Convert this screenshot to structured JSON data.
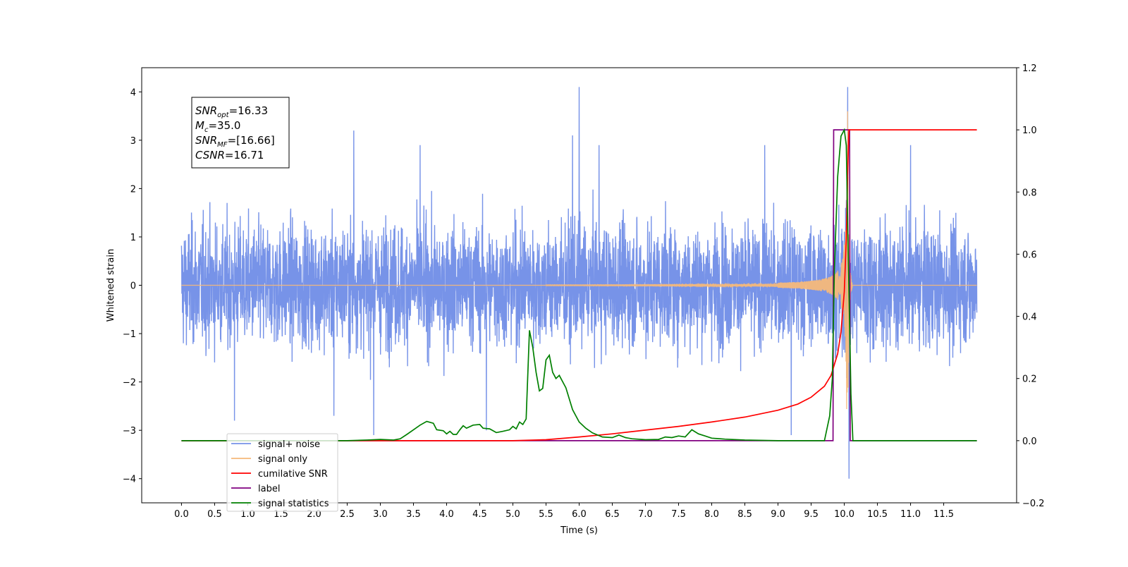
{
  "chart_data": {
    "type": "line",
    "xlabel": "Time (s)",
    "ylabel": "Whitened strain",
    "xlim": [
      -0.6,
      12.6
    ],
    "ylim_left": [
      -4.5,
      4.5
    ],
    "ylim_right": [
      -0.2,
      1.2
    ],
    "x_ticks": [
      "0.0",
      "0.5",
      "1.0",
      "1.5",
      "2.0",
      "2.5",
      "3.0",
      "3.5",
      "4.0",
      "4.5",
      "5.0",
      "5.5",
      "6.0",
      "6.5",
      "7.0",
      "7.5",
      "8.0",
      "8.5",
      "9.0",
      "9.5",
      "10.0",
      "10.5",
      "11.0",
      "11.5"
    ],
    "y_ticks_left": [
      4,
      3,
      2,
      1,
      0,
      -1,
      -2,
      -3,
      -4
    ],
    "y_tick_labels_left": [
      "4",
      "3",
      "2",
      "1",
      "0",
      "−1",
      "−2",
      "−3",
      "−4"
    ],
    "y_ticks_right": [
      1.2,
      1.0,
      0.8,
      0.6,
      0.4,
      0.2,
      0.0,
      -0.2
    ],
    "y_tick_labels_right": [
      "1.2",
      "1.0",
      "0.8",
      "0.6",
      "0.4",
      "0.2",
      "0.0",
      "−0.2"
    ],
    "annotation": {
      "lines": [
        {
          "base": "SNR",
          "sub": "opt",
          "value": "=16.33"
        },
        {
          "base": "M",
          "sub": "c",
          "value": "=35.0"
        },
        {
          "base": "SNR",
          "sub": "MF",
          "value": "=[16.66]"
        },
        {
          "base": "CSNR",
          "sub": "",
          "value": "=16.71"
        }
      ]
    },
    "legend": {
      "placement": "lower-left",
      "entries": [
        "signal+ noise",
        "signal only",
        "cumilative SNR",
        "label",
        "signal statistics"
      ]
    },
    "series": [
      {
        "name": "signal+ noise",
        "axis": "left",
        "color": "#7793e8",
        "kind": "noise",
        "x_range": [
          0.0,
          12.0
        ],
        "typical_amplitude": 1.6,
        "peaks": [
          {
            "x": 6.0,
            "y": 4.1
          },
          {
            "x": 10.05,
            "y": 4.1
          },
          {
            "x": 10.07,
            "y": -4.0
          },
          {
            "x": 0.8,
            "y": -2.8
          },
          {
            "x": 2.3,
            "y": -2.7
          },
          {
            "x": 2.9,
            "y": -3.1
          },
          {
            "x": 2.6,
            "y": 3.2
          },
          {
            "x": 3.6,
            "y": 2.9
          },
          {
            "x": 5.9,
            "y": 3.1
          },
          {
            "x": 6.3,
            "y": 2.9
          },
          {
            "x": 8.8,
            "y": 2.9
          },
          {
            "x": 11.0,
            "y": 2.9
          },
          {
            "x": 4.6,
            "y": -3.0
          },
          {
            "x": 9.2,
            "y": -3.1
          }
        ]
      },
      {
        "name": "signal only",
        "axis": "left",
        "color": "#f5b87a",
        "kind": "chirp",
        "merger_time": 10.05,
        "max_amplitude": 3.6,
        "ringdown_end": 10.12
      },
      {
        "name": "cumilative SNR",
        "axis": "right",
        "color": "#ff0000",
        "points": [
          [
            0.0,
            0.0
          ],
          [
            5.0,
            0.0
          ],
          [
            5.5,
            0.003
          ],
          [
            6.0,
            0.012
          ],
          [
            6.5,
            0.022
          ],
          [
            7.0,
            0.034
          ],
          [
            7.5,
            0.046
          ],
          [
            8.0,
            0.06
          ],
          [
            8.5,
            0.076
          ],
          [
            9.0,
            0.098
          ],
          [
            9.3,
            0.118
          ],
          [
            9.5,
            0.14
          ],
          [
            9.7,
            0.175
          ],
          [
            9.8,
            0.21
          ],
          [
            9.9,
            0.28
          ],
          [
            9.95,
            0.35
          ],
          [
            10.0,
            0.48
          ],
          [
            10.03,
            0.65
          ],
          [
            10.05,
            0.85
          ],
          [
            10.07,
            1.0
          ],
          [
            12.0,
            1.0
          ]
        ]
      },
      {
        "name": "label",
        "axis": "right",
        "color": "#800080",
        "points": [
          [
            0.0,
            0.0
          ],
          [
            9.83,
            0.0
          ],
          [
            9.84,
            1.0
          ],
          [
            10.08,
            1.0
          ],
          [
            10.09,
            0.0
          ],
          [
            12.0,
            0.0
          ]
        ]
      },
      {
        "name": "signal statistics",
        "axis": "right",
        "color": "#008000",
        "points": [
          [
            0.0,
            0.0
          ],
          [
            2.5,
            0.0
          ],
          [
            2.8,
            0.002
          ],
          [
            3.0,
            0.004
          ],
          [
            3.2,
            0.002
          ],
          [
            3.3,
            0.006
          ],
          [
            3.4,
            0.02
          ],
          [
            3.5,
            0.035
          ],
          [
            3.6,
            0.05
          ],
          [
            3.7,
            0.062
          ],
          [
            3.8,
            0.056
          ],
          [
            3.85,
            0.035
          ],
          [
            3.95,
            0.032
          ],
          [
            4.0,
            0.022
          ],
          [
            4.05,
            0.03
          ],
          [
            4.1,
            0.02
          ],
          [
            4.15,
            0.02
          ],
          [
            4.2,
            0.035
          ],
          [
            4.25,
            0.048
          ],
          [
            4.3,
            0.04
          ],
          [
            4.4,
            0.05
          ],
          [
            4.5,
            0.052
          ],
          [
            4.55,
            0.04
          ],
          [
            4.65,
            0.038
          ],
          [
            4.75,
            0.026
          ],
          [
            4.85,
            0.03
          ],
          [
            4.95,
            0.035
          ],
          [
            5.0,
            0.046
          ],
          [
            5.05,
            0.038
          ],
          [
            5.1,
            0.06
          ],
          [
            5.15,
            0.052
          ],
          [
            5.2,
            0.07
          ],
          [
            5.25,
            0.355
          ],
          [
            5.3,
            0.3
          ],
          [
            5.35,
            0.22
          ],
          [
            5.4,
            0.16
          ],
          [
            5.45,
            0.168
          ],
          [
            5.5,
            0.26
          ],
          [
            5.55,
            0.275
          ],
          [
            5.6,
            0.22
          ],
          [
            5.65,
            0.2
          ],
          [
            5.7,
            0.21
          ],
          [
            5.8,
            0.17
          ],
          [
            5.9,
            0.1
          ],
          [
            6.0,
            0.06
          ],
          [
            6.1,
            0.04
          ],
          [
            6.2,
            0.025
          ],
          [
            6.35,
            0.012
          ],
          [
            6.5,
            0.01
          ],
          [
            6.6,
            0.018
          ],
          [
            6.7,
            0.01
          ],
          [
            6.8,
            0.006
          ],
          [
            7.0,
            0.003
          ],
          [
            7.2,
            0.004
          ],
          [
            7.3,
            0.012
          ],
          [
            7.4,
            0.01
          ],
          [
            7.5,
            0.015
          ],
          [
            7.6,
            0.012
          ],
          [
            7.7,
            0.035
          ],
          [
            7.8,
            0.022
          ],
          [
            7.9,
            0.015
          ],
          [
            8.0,
            0.008
          ],
          [
            8.2,
            0.005
          ],
          [
            8.5,
            0.002
          ],
          [
            9.0,
            0.0
          ],
          [
            9.7,
            0.0
          ],
          [
            9.78,
            0.08
          ],
          [
            9.82,
            0.2
          ],
          [
            9.85,
            0.55
          ],
          [
            9.9,
            0.85
          ],
          [
            9.95,
            0.98
          ],
          [
            10.0,
            1.0
          ],
          [
            10.03,
            0.95
          ],
          [
            10.06,
            0.6
          ],
          [
            10.1,
            0.15
          ],
          [
            10.13,
            0.0
          ],
          [
            12.0,
            0.0
          ]
        ]
      }
    ]
  }
}
